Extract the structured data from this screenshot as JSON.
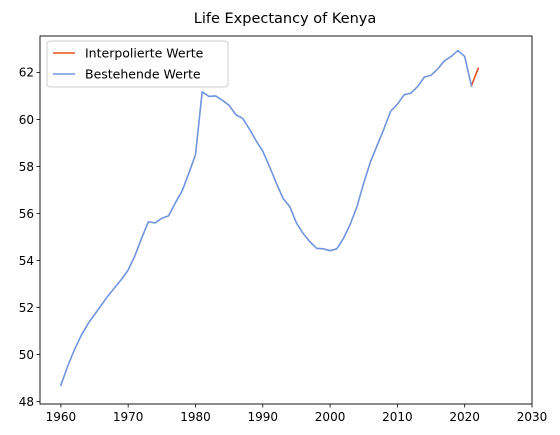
{
  "chart_data": {
    "type": "line",
    "title": "Life Expectancy of Kenya",
    "xlabel": "",
    "ylabel": "",
    "xlim": [
      1956.9,
      2030
    ],
    "ylim": [
      47.9,
      63.55
    ],
    "x_ticks": [
      1960,
      1970,
      1980,
      1990,
      2000,
      2010,
      2020,
      2030
    ],
    "y_ticks": [
      48,
      50,
      52,
      54,
      56,
      58,
      60,
      62
    ],
    "grid": false,
    "legend_position": "top-left",
    "series": [
      {
        "name": "Interpolierte Werte",
        "color": "#e8501f",
        "x": [
          2021,
          2022
        ],
        "y": [
          61.43,
          62.17
        ]
      },
      {
        "name": "Bestehende Werte",
        "color": "#7094dd",
        "x": [
          1960,
          1961,
          1962,
          1963,
          1964,
          1965,
          1966,
          1967,
          1968,
          1969,
          1970,
          1971,
          1972,
          1973,
          1974,
          1975,
          1976,
          1977,
          1978,
          1979,
          1980,
          1981,
          1982,
          1983,
          1984,
          1985,
          1986,
          1987,
          1988,
          1989,
          1990,
          1991,
          1992,
          1993,
          1994,
          1995,
          1996,
          1997,
          1998,
          1999,
          2000,
          2001,
          2002,
          2003,
          2004,
          2005,
          2006,
          2007,
          2008,
          2009,
          2010,
          2011,
          2012,
          2013,
          2014,
          2015,
          2016,
          2017,
          2018,
          2019,
          2020,
          2021
        ],
        "y": [
          48.7,
          49.5,
          50.2,
          50.8,
          51.3,
          51.7,
          52.1,
          52.5,
          52.85,
          53.2,
          53.6,
          54.2,
          54.95,
          55.65,
          55.6,
          55.8,
          55.9,
          56.45,
          56.95,
          57.7,
          58.5,
          61.18,
          60.98,
          61.0,
          60.82,
          60.6,
          60.2,
          60.05,
          59.6,
          59.1,
          58.65,
          58.0,
          57.3,
          56.65,
          56.3,
          55.6,
          55.15,
          54.8,
          54.52,
          54.5,
          54.42,
          54.5,
          54.95,
          55.55,
          56.3,
          57.3,
          58.2,
          58.9,
          59.6,
          60.35,
          60.65,
          61.05,
          61.12,
          61.4,
          61.8,
          61.88,
          62.15,
          62.5,
          62.68,
          62.93,
          62.68,
          61.43
        ]
      }
    ]
  }
}
